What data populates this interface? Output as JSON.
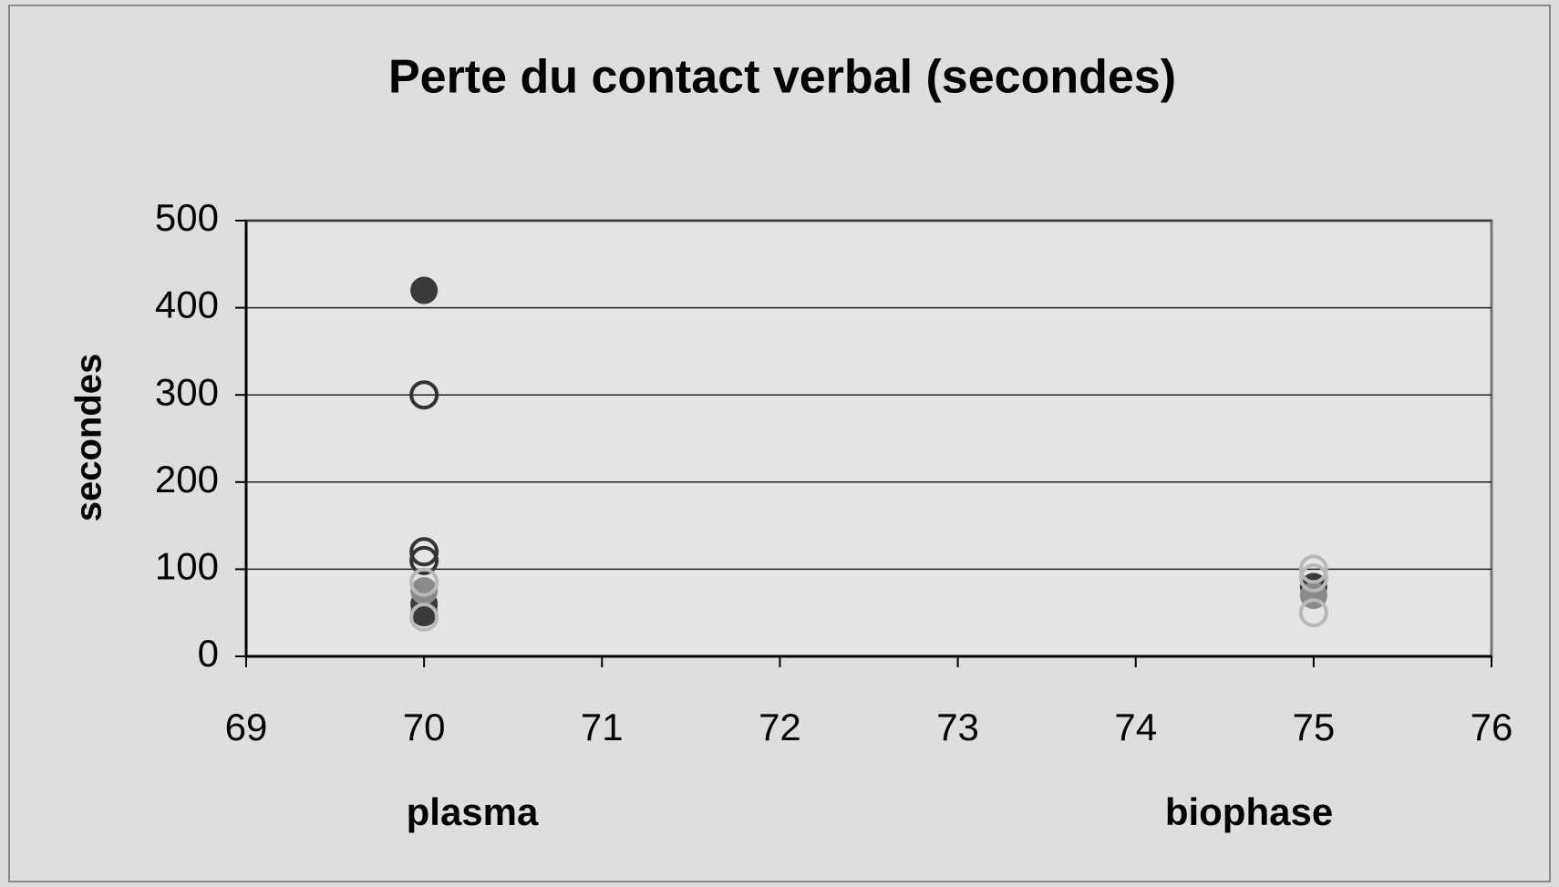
{
  "chart_data": {
    "type": "scatter",
    "title": "Perte du contact verbal (secondes)",
    "y_label": "secondes",
    "annotations": [
      "plasma",
      "biophase"
    ],
    "xlim": [
      69,
      76
    ],
    "xticks": [
      69,
      70,
      71,
      72,
      73,
      74,
      75,
      76
    ],
    "ylim": [
      0,
      500
    ],
    "yticks": [
      0,
      100,
      200,
      300,
      400,
      500
    ],
    "grid": true,
    "series": [
      {
        "color": "#3a3a3a",
        "filled": true,
        "x": [
          70,
          70,
          70,
          75
        ],
        "values": [
          420,
          60,
          50,
          80
        ]
      },
      {
        "color": "#333333",
        "filled": false,
        "x": [
          70,
          70,
          70
        ],
        "values": [
          300,
          120,
          110
        ]
      },
      {
        "color": "#8a8a8a",
        "filled": true,
        "x": [
          70,
          75
        ],
        "values": [
          75,
          70
        ]
      },
      {
        "color": "#b8b8b8",
        "filled": false,
        "x": [
          70,
          70,
          75,
          75,
          75
        ],
        "values": [
          85,
          45,
          100,
          90,
          50
        ]
      }
    ]
  }
}
